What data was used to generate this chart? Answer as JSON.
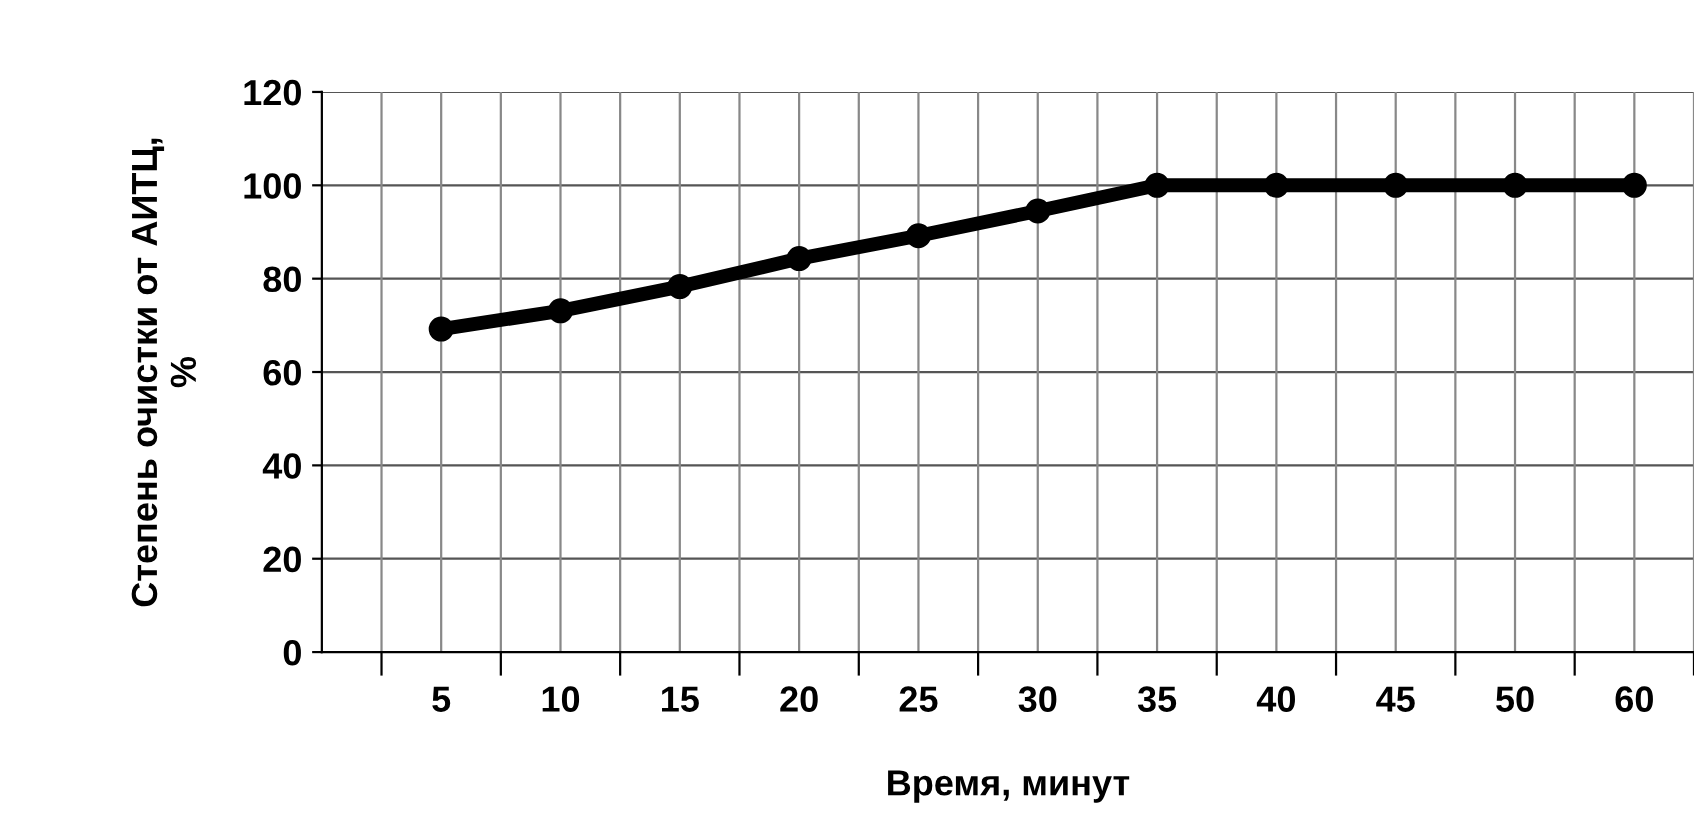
{
  "chart_data": {
    "type": "line",
    "xlabel": "Время, минут",
    "ylabel": "Степень очистки от АИТЦ,\n%",
    "categories": [
      "5",
      "10",
      "15",
      "20",
      "25",
      "30",
      "35",
      "40",
      "45",
      "50",
      "60"
    ],
    "series": [
      {
        "color": "#000000",
        "values": [
          69.2,
          73.1,
          78.3,
          84.3,
          89.2,
          94.5,
          100,
          100,
          100,
          100,
          100
        ]
      }
    ],
    "ylim": [
      0,
      120
    ],
    "yticks": [
      0,
      20,
      40,
      60,
      80,
      100,
      120
    ],
    "grid": true,
    "marker": "circle",
    "line_style": "solid"
  }
}
